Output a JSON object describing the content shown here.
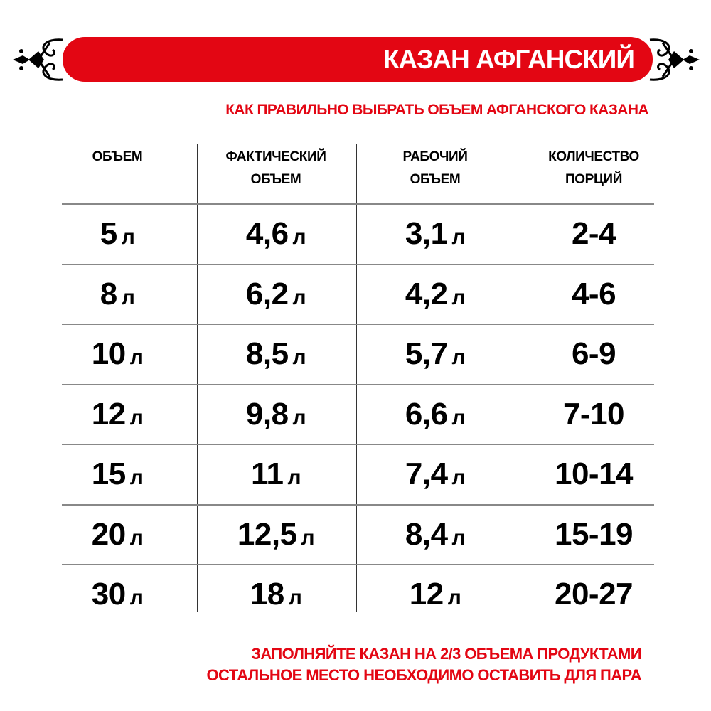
{
  "header": {
    "title": "КАЗАН АФГАНСКИЙ",
    "ornament_icon": "ornamental-scroll-icon",
    "accent_color": "#e30613"
  },
  "subtitle": "КАК ПРАВИЛЬНО ВЫБРАТЬ ОБЪЕМ АФГАНСКОГО КАЗАНА",
  "table": {
    "headers": [
      [
        "ОБЪЕМ",
        ""
      ],
      [
        "ФАКТИЧЕСКИЙ",
        "ОБЪЕМ"
      ],
      [
        "РАБОЧИЙ",
        "ОБЪЕМ"
      ],
      [
        "КОЛИЧЕСТВО",
        "ПОРЦИЙ"
      ]
    ],
    "unit": "л",
    "rows": [
      [
        "5",
        "4,6",
        "3,1",
        "2-4"
      ],
      [
        "8",
        "6,2",
        "4,2",
        "4-6"
      ],
      [
        "10",
        "8,5",
        "5,7",
        "6-9"
      ],
      [
        "12",
        "9,8",
        "6,6",
        "7-10"
      ],
      [
        "15",
        "11",
        "7,4",
        "10-14"
      ],
      [
        "20",
        "12,5",
        "8,4",
        "15-19"
      ],
      [
        "30",
        "18",
        "12",
        "20-27"
      ]
    ]
  },
  "footer": {
    "line1": "ЗАПОЛНЯЙТЕ КАЗАН НА 2/3 ОБЪЕМА ПРОДУКТАМИ",
    "line2": "ОСТАЛЬНОЕ МЕСТО НЕОБХОДИМО ОСТАВИТЬ ДЛЯ ПАРА"
  }
}
